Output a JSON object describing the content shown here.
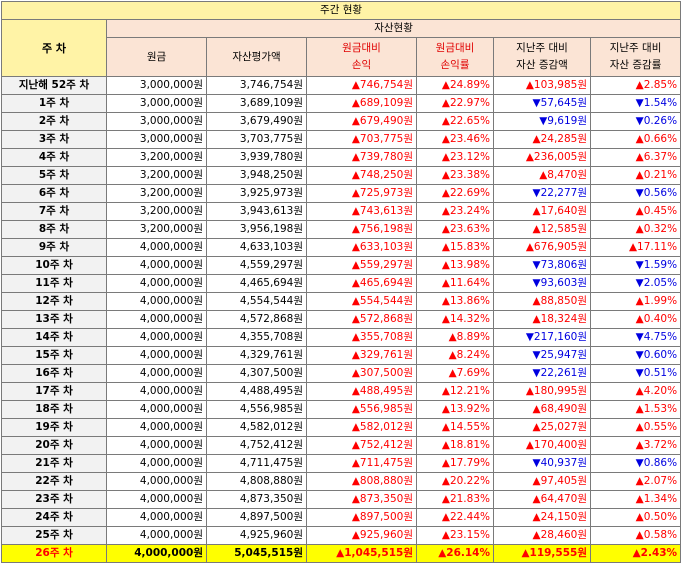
{
  "title": "주간 현황",
  "headers": {
    "week": "주 차",
    "asset_group": "자산현황",
    "principal": "원금",
    "valuation": "자산평가액",
    "profit_amount": "원금대비\n손익",
    "profit_rate": "원금대비\n손익률",
    "asset_change": "지난주 대비\n자산 증감액",
    "asset_change_rate": "지난주 대비\n자산 증감률"
  },
  "colors": {
    "title_bg": "#fff3a6",
    "header_bg": "#fbe4d5",
    "week_bg": "#f2f2f2",
    "highlight_bg": "#ffff00",
    "up": "#ff0000",
    "down": "#0000e0"
  },
  "rows": [
    {
      "week": "지난해 52주 차",
      "principal": "3,000,000원",
      "valuation": "3,746,754원",
      "profit": "▲746,754원",
      "rate": "▲24.89%",
      "change": "▲103,985원",
      "change_rate": "▲2.85%"
    },
    {
      "week": "1주 차",
      "principal": "3,000,000원",
      "valuation": "3,689,109원",
      "profit": "▲689,109원",
      "rate": "▲22.97%",
      "change": "▼57,645원",
      "change_rate": "▼1.54%"
    },
    {
      "week": "2주 차",
      "principal": "3,000,000원",
      "valuation": "3,679,490원",
      "profit": "▲679,490원",
      "rate": "▲22.65%",
      "change": "▼9,619원",
      "change_rate": "▼0.26%"
    },
    {
      "week": "3주 차",
      "principal": "3,000,000원",
      "valuation": "3,703,775원",
      "profit": "▲703,775원",
      "rate": "▲23.46%",
      "change": "▲24,285원",
      "change_rate": "▲0.66%"
    },
    {
      "week": "4주 차",
      "principal": "3,200,000원",
      "valuation": "3,939,780원",
      "profit": "▲739,780원",
      "rate": "▲23.12%",
      "change": "▲236,005원",
      "change_rate": "▲6.37%"
    },
    {
      "week": "5주 차",
      "principal": "3,200,000원",
      "valuation": "3,948,250원",
      "profit": "▲748,250원",
      "rate": "▲23.38%",
      "change": "▲8,470원",
      "change_rate": "▲0.21%"
    },
    {
      "week": "6주 차",
      "principal": "3,200,000원",
      "valuation": "3,925,973원",
      "profit": "▲725,973원",
      "rate": "▲22.69%",
      "change": "▼22,277원",
      "change_rate": "▼0.56%"
    },
    {
      "week": "7주 차",
      "principal": "3,200,000원",
      "valuation": "3,943,613원",
      "profit": "▲743,613원",
      "rate": "▲23.24%",
      "change": "▲17,640원",
      "change_rate": "▲0.45%"
    },
    {
      "week": "8주 차",
      "principal": "3,200,000원",
      "valuation": "3,956,198원",
      "profit": "▲756,198원",
      "rate": "▲23.63%",
      "change": "▲12,585원",
      "change_rate": "▲0.32%"
    },
    {
      "week": "9주 차",
      "principal": "4,000,000원",
      "valuation": "4,633,103원",
      "profit": "▲633,103원",
      "rate": "▲15.83%",
      "change": "▲676,905원",
      "change_rate": "▲17.11%"
    },
    {
      "week": "10주 차",
      "principal": "4,000,000원",
      "valuation": "4,559,297원",
      "profit": "▲559,297원",
      "rate": "▲13.98%",
      "change": "▼73,806원",
      "change_rate": "▼1.59%"
    },
    {
      "week": "11주 차",
      "principal": "4,000,000원",
      "valuation": "4,465,694원",
      "profit": "▲465,694원",
      "rate": "▲11.64%",
      "change": "▼93,603원",
      "change_rate": "▼2.05%"
    },
    {
      "week": "12주 차",
      "principal": "4,000,000원",
      "valuation": "4,554,544원",
      "profit": "▲554,544원",
      "rate": "▲13.86%",
      "change": "▲88,850원",
      "change_rate": "▲1.99%"
    },
    {
      "week": "13주 차",
      "principal": "4,000,000원",
      "valuation": "4,572,868원",
      "profit": "▲572,868원",
      "rate": "▲14.32%",
      "change": "▲18,324원",
      "change_rate": "▲0.40%"
    },
    {
      "week": "14주 차",
      "principal": "4,000,000원",
      "valuation": "4,355,708원",
      "profit": "▲355,708원",
      "rate": "▲8.89%",
      "change": "▼217,160원",
      "change_rate": "▼4.75%"
    },
    {
      "week": "15주 차",
      "principal": "4,000,000원",
      "valuation": "4,329,761원",
      "profit": "▲329,761원",
      "rate": "▲8.24%",
      "change": "▼25,947원",
      "change_rate": "▼0.60%"
    },
    {
      "week": "16주 차",
      "principal": "4,000,000원",
      "valuation": "4,307,500원",
      "profit": "▲307,500원",
      "rate": "▲7.69%",
      "change": "▼22,261원",
      "change_rate": "▼0.51%"
    },
    {
      "week": "17주 차",
      "principal": "4,000,000원",
      "valuation": "4,488,495원",
      "profit": "▲488,495원",
      "rate": "▲12.21%",
      "change": "▲180,995원",
      "change_rate": "▲4.20%"
    },
    {
      "week": "18주 차",
      "principal": "4,000,000원",
      "valuation": "4,556,985원",
      "profit": "▲556,985원",
      "rate": "▲13.92%",
      "change": "▲68,490원",
      "change_rate": "▲1.53%"
    },
    {
      "week": "19주 차",
      "principal": "4,000,000원",
      "valuation": "4,582,012원",
      "profit": "▲582,012원",
      "rate": "▲14.55%",
      "change": "▲25,027원",
      "change_rate": "▲0.55%"
    },
    {
      "week": "20주 차",
      "principal": "4,000,000원",
      "valuation": "4,752,412원",
      "profit": "▲752,412원",
      "rate": "▲18.81%",
      "change": "▲170,400원",
      "change_rate": "▲3.72%"
    },
    {
      "week": "21주 차",
      "principal": "4,000,000원",
      "valuation": "4,711,475원",
      "profit": "▲711,475원",
      "rate": "▲17.79%",
      "change": "▼40,937원",
      "change_rate": "▼0.86%"
    },
    {
      "week": "22주 차",
      "principal": "4,000,000원",
      "valuation": "4,808,880원",
      "profit": "▲808,880원",
      "rate": "▲20.22%",
      "change": "▲97,405원",
      "change_rate": "▲2.07%"
    },
    {
      "week": "23주 차",
      "principal": "4,000,000원",
      "valuation": "4,873,350원",
      "profit": "▲873,350원",
      "rate": "▲21.83%",
      "change": "▲64,470원",
      "change_rate": "▲1.34%"
    },
    {
      "week": "24주 차",
      "principal": "4,000,000원",
      "valuation": "4,897,500원",
      "profit": "▲897,500원",
      "rate": "▲22.44%",
      "change": "▲24,150원",
      "change_rate": "▲0.50%"
    },
    {
      "week": "25주 차",
      "principal": "4,000,000원",
      "valuation": "4,925,960원",
      "profit": "▲925,960원",
      "rate": "▲23.15%",
      "change": "▲28,460원",
      "change_rate": "▲0.58%"
    },
    {
      "week": "26주 차",
      "principal": "4,000,000원",
      "valuation": "5,045,515원",
      "profit": "▲1,045,515원",
      "rate": "▲26.14%",
      "change": "▲119,555원",
      "change_rate": "▲2.43%"
    }
  ]
}
